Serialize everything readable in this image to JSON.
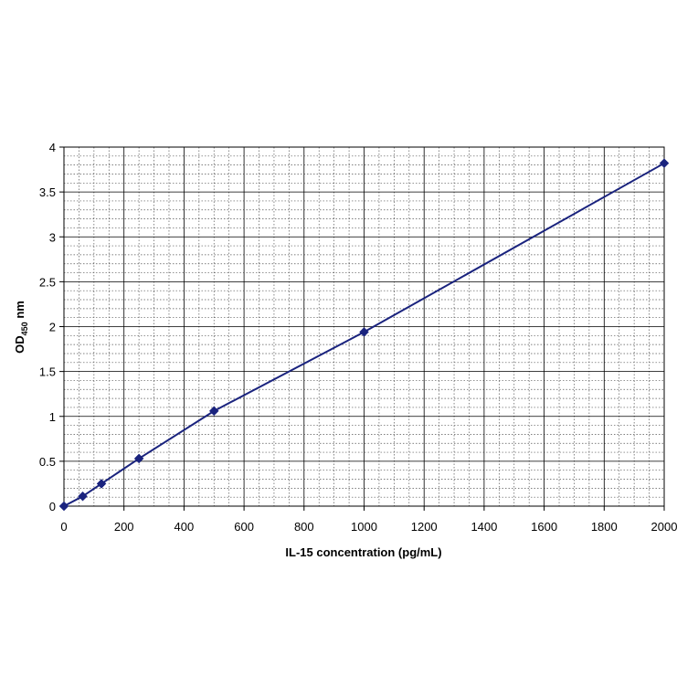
{
  "chart_data": {
    "type": "line",
    "title": "",
    "xlabel": "IL-15 concentration (pg/mL)",
    "ylabel": {
      "main": "OD",
      "subscript": "450",
      "unit": " nm"
    },
    "xlim": [
      0,
      2000
    ],
    "ylim": [
      0,
      4
    ],
    "x_ticks": [
      0,
      200,
      400,
      600,
      800,
      1000,
      1200,
      1400,
      1600,
      1800,
      2000
    ],
    "y_ticks": [
      0,
      0.5,
      1,
      1.5,
      2,
      2.5,
      3,
      3.5,
      4
    ],
    "grid": true,
    "legend": "none",
    "series": [
      {
        "x": [
          0,
          62.5,
          125,
          250,
          500,
          1000,
          2000
        ],
        "y": [
          0.0,
          0.11,
          0.25,
          0.53,
          1.06,
          1.94,
          3.82
        ],
        "color": "#1a237e",
        "marker": "diamond"
      }
    ]
  }
}
